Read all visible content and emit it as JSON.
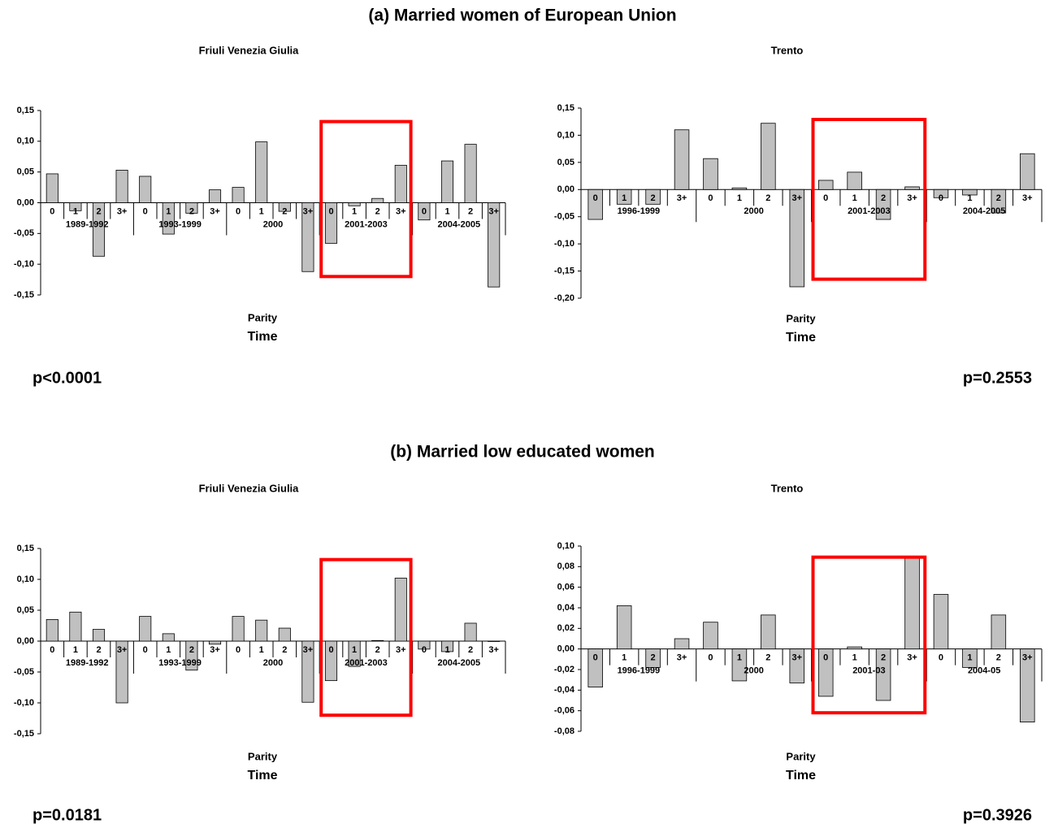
{
  "headings": [
    "(a) Married women of European Union",
    "(b) Married low educated women"
  ],
  "chart_data": [
    {
      "type": "bar",
      "title": "Friuli Venezia Giulia",
      "xlabel": "Parity",
      "xlabel2": "Time",
      "annotation": "p<0.0001",
      "categories": [
        "0",
        "1",
        "2",
        "3+",
        "0",
        "1",
        "2",
        "3+",
        "0",
        "1",
        "2",
        "3+",
        "0",
        "1",
        "2",
        "3+",
        "0",
        "1",
        "2",
        "3+"
      ],
      "groups": [
        "1989-1992",
        "1993-1999",
        "2000",
        "2001-2003",
        "2004-2005"
      ],
      "values": [
        0.047,
        -0.013,
        -0.087,
        0.053,
        0.043,
        -0.051,
        -0.017,
        0.021,
        0.025,
        0.099,
        -0.014,
        -0.112,
        -0.066,
        -0.005,
        0.007,
        0.061,
        -0.028,
        0.068,
        0.095,
        -0.137
      ],
      "color": "#c0c0c0",
      "highlight_group": 3,
      "highlight_color": "#ff0000",
      "ylim": [
        -0.15,
        0.15
      ],
      "yticks": [
        {
          "value": -0.15,
          "label": "-0,15"
        },
        {
          "value": -0.1,
          "label": "-0,10"
        },
        {
          "value": -0.05,
          "label": "-0,05"
        },
        {
          "value": 0,
          "label": "0,00"
        },
        {
          "value": 0.05,
          "label": "0,05"
        },
        {
          "value": 0.1,
          "label": "0,10"
        },
        {
          "value": 0.15,
          "label": "0,15"
        }
      ]
    },
    {
      "type": "bar",
      "title": "Trento",
      "xlabel": "Parity",
      "xlabel2": "Time",
      "annotation": "p=0.2553",
      "categories": [
        "0",
        "1",
        "2",
        "3+",
        "0",
        "1",
        "2",
        "3+",
        "0",
        "1",
        "2",
        "3+",
        "0",
        "1",
        "2",
        "3+"
      ],
      "groups": [
        "1996-1999",
        "2000",
        "2001-2003",
        "2004-2005"
      ],
      "values": [
        -0.055,
        -0.027,
        -0.027,
        0.11,
        0.057,
        0.003,
        0.122,
        -0.179,
        0.017,
        0.032,
        -0.055,
        0.005,
        -0.015,
        -0.01,
        -0.043,
        0.066
      ],
      "color": "#c0c0c0",
      "highlight_group": 2,
      "highlight_color": "#ff0000",
      "ylim": [
        -0.2,
        0.15
      ],
      "yticks": [
        {
          "value": -0.2,
          "label": "-0,20"
        },
        {
          "value": -0.15,
          "label": "-0,15"
        },
        {
          "value": -0.1,
          "label": "-0,10"
        },
        {
          "value": -0.05,
          "label": "-0,05"
        },
        {
          "value": 0,
          "label": "0,00"
        },
        {
          "value": 0.05,
          "label": "0,05"
        },
        {
          "value": 0.1,
          "label": "0,10"
        },
        {
          "value": 0.15,
          "label": "0,15"
        }
      ]
    },
    {
      "type": "bar",
      "title": "Friuli Venezia Giulia",
      "xlabel": "Parity",
      "xlabel2": "Time",
      "annotation": "p=0.0181",
      "categories": [
        "0",
        "1",
        "2",
        "3+",
        "0",
        "1",
        "2",
        "3+",
        "0",
        "1",
        "2",
        "3+",
        "0",
        "1",
        "2",
        "3+",
        "0",
        "1",
        "2",
        "3+"
      ],
      "groups": [
        "1989-1992",
        "1993-1999",
        "2000",
        "2001-2003",
        "2004-2005"
      ],
      "values": [
        0.035,
        0.047,
        0.019,
        -0.1,
        0.04,
        0.012,
        -0.047,
        -0.005,
        0.04,
        0.034,
        0.021,
        -0.099,
        -0.064,
        -0.041,
        0.001,
        0.102,
        -0.013,
        -0.017,
        0.029,
        0
      ],
      "color": "#c0c0c0",
      "highlight_group": 3,
      "highlight_color": "#ff0000",
      "ylim": [
        -0.15,
        0.15
      ],
      "yticks": [
        {
          "value": -0.15,
          "label": "-0,15"
        },
        {
          "value": -0.1,
          "label": "-0,10"
        },
        {
          "value": -0.05,
          "label": "-0,05"
        },
        {
          "value": 0,
          "label": "0,00"
        },
        {
          "value": 0.05,
          "label": "0,05"
        },
        {
          "value": 0.1,
          "label": "0,10"
        },
        {
          "value": 0.15,
          "label": "0,15"
        }
      ]
    },
    {
      "type": "bar",
      "title": "Trento",
      "xlabel": "Parity",
      "xlabel2": "Time",
      "annotation": "p=0.3926",
      "categories": [
        "0",
        "1",
        "2",
        "3+",
        "0",
        "1",
        "2",
        "3+",
        "0",
        "1",
        "2",
        "3+",
        "0",
        "1",
        "2",
        "3+"
      ],
      "groups": [
        "1996-1999",
        "2000",
        "2001-03",
        "2004-05"
      ],
      "values": [
        -0.037,
        0.042,
        -0.018,
        0.01,
        0.026,
        -0.031,
        0.033,
        -0.033,
        -0.046,
        0.002,
        -0.05,
        0.089,
        0.053,
        -0.018,
        0.033,
        -0.071
      ],
      "color": "#c0c0c0",
      "highlight_group": 2,
      "highlight_color": "#ff0000",
      "ylim": [
        -0.08,
        0.1
      ],
      "yticks": [
        {
          "value": -0.08,
          "label": "-0,08"
        },
        {
          "value": -0.06,
          "label": "-0,06"
        },
        {
          "value": -0.04,
          "label": "-0,04"
        },
        {
          "value": -0.02,
          "label": "-0,02"
        },
        {
          "value": 0,
          "label": "0,00"
        },
        {
          "value": 0.02,
          "label": "0,02"
        },
        {
          "value": 0.04,
          "label": "0,04"
        },
        {
          "value": 0.06,
          "label": "0,06"
        },
        {
          "value": 0.08,
          "label": "0,08"
        },
        {
          "value": 0.1,
          "label": "0,10"
        }
      ]
    }
  ]
}
